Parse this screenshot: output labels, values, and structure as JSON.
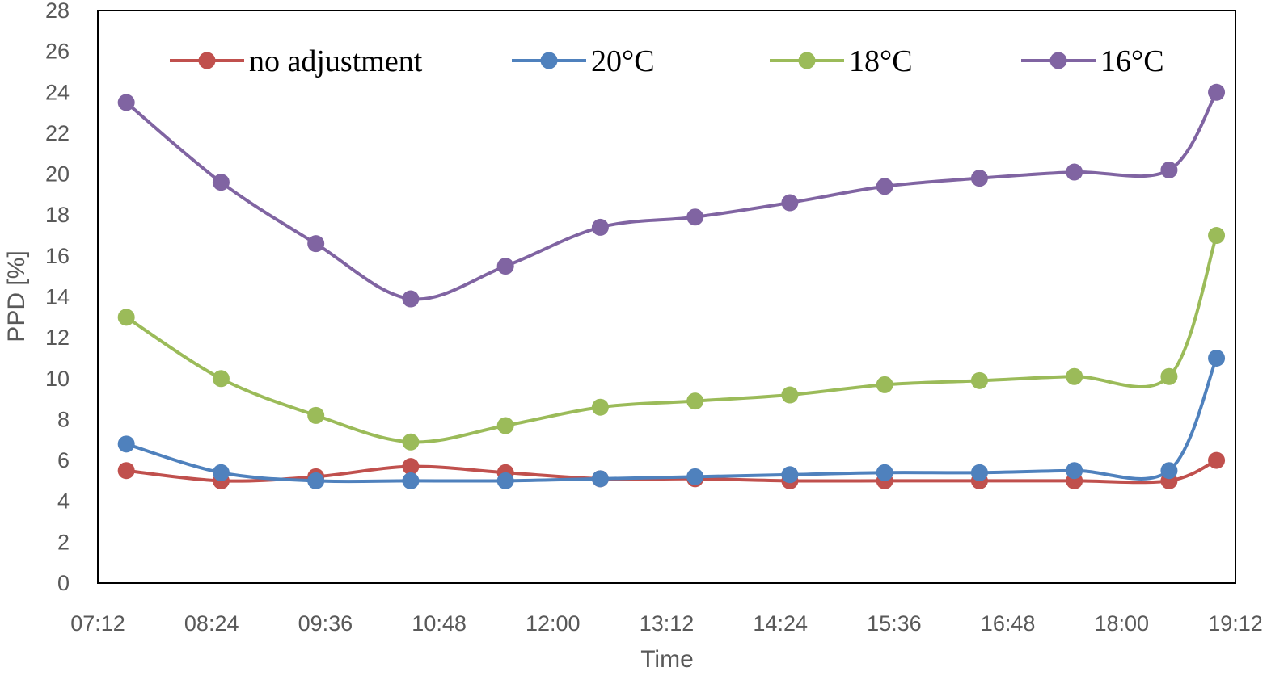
{
  "chart_data": {
    "type": "line",
    "xlabel": "Time",
    "ylabel": "PPD [%]",
    "ylim": [
      0,
      28
    ],
    "yticks": [
      "0",
      "2",
      "4",
      "6",
      "8",
      "10",
      "12",
      "14",
      "16",
      "18",
      "20",
      "22",
      "24",
      "26",
      "28"
    ],
    "xticks": [
      "07:12",
      "08:24",
      "09:36",
      "10:48",
      "12:00",
      "13:12",
      "14:24",
      "15:36",
      "16:48",
      "18:00",
      "19:12"
    ],
    "x_range_minutes": [
      432,
      1152
    ],
    "legend_position": "top",
    "grid": false,
    "x": [
      "07:30",
      "08:30",
      "09:30",
      "10:30",
      "11:30",
      "12:30",
      "13:30",
      "14:30",
      "15:30",
      "16:30",
      "17:30",
      "18:30",
      "19:00"
    ],
    "series": [
      {
        "name": "no adjustment",
        "color": "#C0504D",
        "values": [
          5.5,
          5.0,
          5.2,
          5.7,
          5.4,
          5.1,
          5.1,
          5.0,
          5.0,
          5.0,
          5.0,
          5.0,
          6.0
        ]
      },
      {
        "name": "20°C",
        "color": "#4F81BD",
        "values": [
          6.8,
          5.4,
          5.0,
          5.0,
          5.0,
          5.1,
          5.2,
          5.3,
          5.4,
          5.4,
          5.5,
          5.5,
          11.0
        ]
      },
      {
        "name": "18°C",
        "color": "#9BBB59",
        "values": [
          13.0,
          10.0,
          8.2,
          6.9,
          7.7,
          8.6,
          8.9,
          9.2,
          9.7,
          9.9,
          10.1,
          10.1,
          17.0
        ]
      },
      {
        "name": "16°C",
        "color": "#8064A2",
        "values": [
          23.5,
          19.6,
          16.6,
          13.9,
          15.5,
          17.4,
          17.9,
          18.6,
          19.4,
          19.8,
          20.1,
          20.2,
          24.0
        ]
      }
    ]
  }
}
